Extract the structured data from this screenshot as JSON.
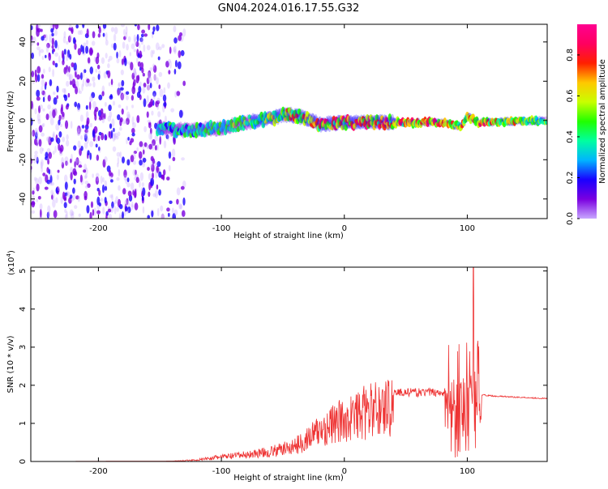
{
  "title": "GN04.2024.016.17.55.G32",
  "chart_data": [
    {
      "type": "heatmap",
      "xlabel": "Height of straight line (km)",
      "ylabel": "Frequency (Hz)",
      "xlim": [
        -255,
        165
      ],
      "ylim": [
        -50,
        49
      ],
      "xticks": [
        -200,
        -100,
        0,
        100
      ],
      "yticks": [
        -40,
        -20,
        0,
        20,
        40
      ],
      "colorbar": {
        "label": "Normalized spectral amplitude",
        "range": [
          0,
          0.95
        ],
        "ticks": [
          0.0,
          0.2,
          0.4,
          0.6,
          0.8
        ],
        "colormap": [
          "#c8a8ff",
          "#7a00e0",
          "#1a00ff",
          "#00b4ff",
          "#00ffa0",
          "#20ff00",
          "#c8ff00",
          "#ffc800",
          "#ff2000",
          "#ff0060",
          "#ff0090"
        ]
      },
      "ridge": {
        "x": [
          -150,
          -130,
          -100,
          -80,
          -60,
          -45,
          -30,
          -20,
          0,
          50,
          80,
          95,
          100,
          110,
          165
        ],
        "y": [
          -4,
          -5,
          -4,
          -1,
          1,
          3,
          1,
          -2,
          -1,
          -1,
          -1,
          -3,
          2,
          -1,
          0
        ],
        "peak_amplitude": [
          0.4,
          0.45,
          0.5,
          0.55,
          0.65,
          0.75,
          0.7,
          0.85,
          0.9,
          0.85,
          0.8,
          0.7,
          0.75,
          0.85,
          0.55
        ]
      },
      "noise_region": [
        -255,
        -150
      ],
      "grid": false
    },
    {
      "type": "line",
      "xlabel": "Height of straight line (km)",
      "ylabel": "SNR (10 * v/v)",
      "scale_label": "(x10",
      "scale_exp": "4",
      "scale_close": ")",
      "xlim": [
        -255,
        165
      ],
      "ylim": [
        0,
        5.1
      ],
      "xticks": [
        -200,
        -100,
        0,
        100
      ],
      "yticks": [
        0,
        1,
        2,
        3,
        4,
        5
      ],
      "series": [
        {
          "color": "#ee3333",
          "envelope": {
            "x": [
              -255,
              -140,
              -120,
              -100,
              -80,
              -60,
              -40,
              -30,
              -20,
              -10,
              0,
              20,
              40,
              60,
              80,
              90,
              100,
              105,
              108,
              110,
              112,
              120,
              165
            ],
            "y": [
              0,
              0.01,
              0.05,
              0.15,
              0.22,
              0.32,
              0.5,
              0.75,
              1.0,
              1.2,
              1.35,
              1.65,
              1.85,
              1.85,
              1.85,
              1.9,
              1.9,
              1.9,
              1.9,
              1.9,
              1.75,
              1.72,
              1.65
            ]
          },
          "peak_x": 105,
          "peak_y": 5.1
        }
      ],
      "grid": false
    }
  ]
}
